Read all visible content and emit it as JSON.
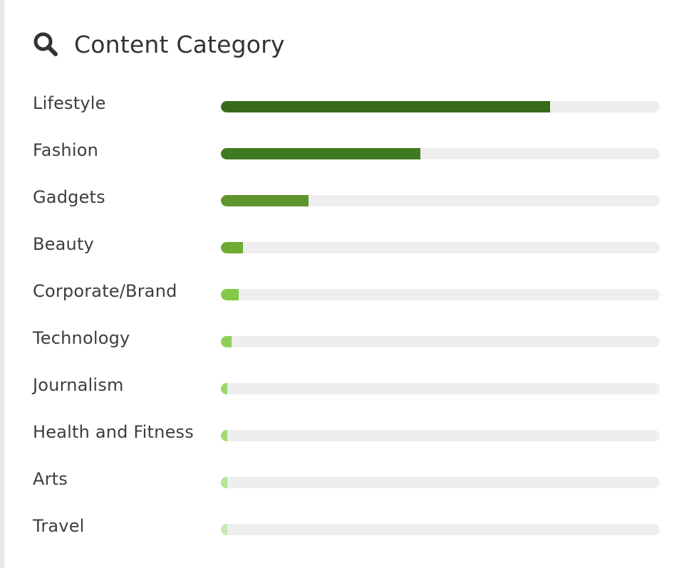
{
  "header": {
    "title": "Content Category",
    "icon": "search-icon"
  },
  "chart_data": {
    "type": "bar",
    "orientation": "horizontal",
    "title": "Content Category",
    "xlim": [
      0,
      100
    ],
    "categories": [
      "Lifestyle",
      "Fashion",
      "Gadgets",
      "Beauty",
      "Corporate/Brand",
      "Technology",
      "Journalism",
      "Health and Fitness",
      "Arts",
      "Travel"
    ],
    "values": [
      75,
      45.5,
      20,
      5,
      4,
      2.5,
      1.5,
      1.5,
      1.5,
      1.5
    ],
    "colors": [
      "#386a1c",
      "#3f7b21",
      "#5e962d",
      "#6eab33",
      "#83c944",
      "#8fd05b",
      "#99d866",
      "#a3db79",
      "#b6e394",
      "#c6eaae"
    ],
    "track_color": "#eeeeee"
  }
}
